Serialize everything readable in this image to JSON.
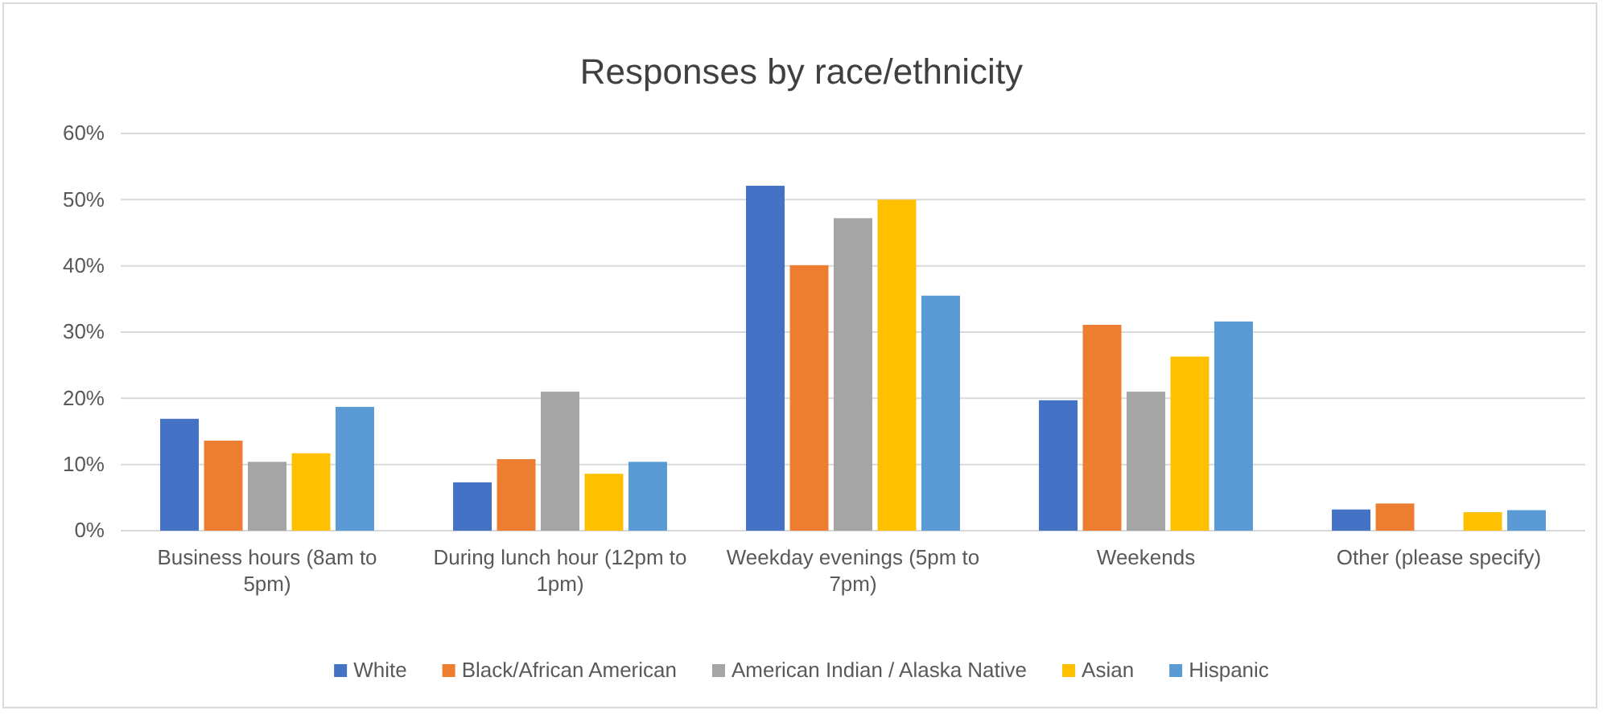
{
  "chart_data": {
    "type": "bar",
    "title": "Responses by race/ethnicity",
    "categories": [
      "Business hours (8am to 5pm)",
      "During lunch hour (12pm to 1pm)",
      "Weekday evenings (5pm to 7pm)",
      "Weekends",
      "Other (please specify)"
    ],
    "series": [
      {
        "name": "White",
        "color": "#4472c4",
        "values": [
          16.9,
          7.3,
          52.1,
          19.7,
          3.2
        ]
      },
      {
        "name": "Black/African American",
        "color": "#ed7d31",
        "values": [
          13.6,
          10.8,
          40.1,
          31.1,
          4.1
        ]
      },
      {
        "name": "American Indian / Alaska Native",
        "color": "#a5a5a5",
        "values": [
          10.4,
          21.0,
          47.2,
          21.0,
          0
        ]
      },
      {
        "name": "Asian",
        "color": "#ffc000",
        "values": [
          11.7,
          8.6,
          50.0,
          26.3,
          2.8
        ]
      },
      {
        "name": "Hispanic",
        "color": "#5b9bd5",
        "values": [
          18.7,
          10.4,
          35.5,
          31.6,
          3.1
        ]
      }
    ],
    "ylim": [
      0,
      60
    ],
    "yticks": [
      {
        "value": 0,
        "label": "0%"
      },
      {
        "value": 10,
        "label": "10%"
      },
      {
        "value": 20,
        "label": "20%"
      },
      {
        "value": 30,
        "label": "30%"
      },
      {
        "value": 40,
        "label": "40%"
      },
      {
        "value": 50,
        "label": "50%"
      },
      {
        "value": 60,
        "label": "60%"
      }
    ],
    "grid": "y",
    "legend": "bottom"
  }
}
